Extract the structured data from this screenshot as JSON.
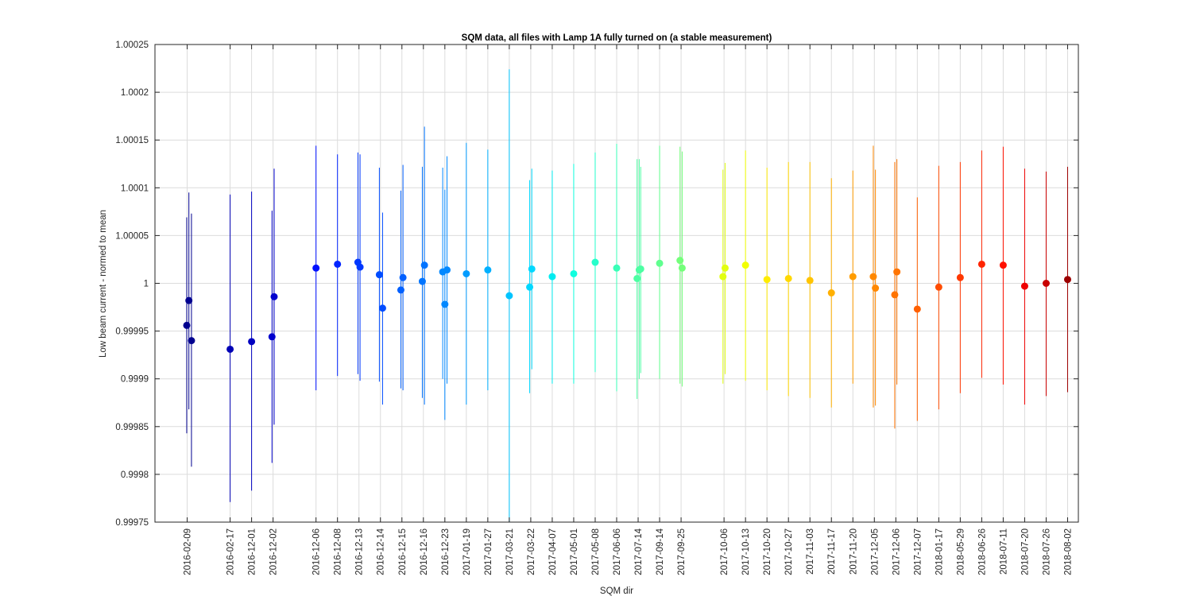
{
  "chart_data": {
    "type": "scatter",
    "title": "SQM data, all files with Lamp 1A fully turned on (a stable measurement)",
    "xlabel": "SQM dir",
    "ylabel": "Low beam current - normed to mean",
    "ylim": [
      0.99975,
      1.00025
    ],
    "yticks": [
      "0.99975",
      "0.9998",
      "0.99985",
      "0.9999",
      "0.99995",
      "1",
      "1.00005",
      "1.0001",
      "1.00015",
      "1.0002",
      "1.00025"
    ],
    "xlim": [
      -0.5,
      42.5
    ],
    "xticks": [
      {
        "x": 1,
        "label": "2016-02-09"
      },
      {
        "x": 3,
        "label": "2016-02-17"
      },
      {
        "x": 4,
        "label": "2016-12-01"
      },
      {
        "x": 5,
        "label": "2016-12-02"
      },
      {
        "x": 7,
        "label": "2016-12-06"
      },
      {
        "x": 8,
        "label": "2016-12-08"
      },
      {
        "x": 9,
        "label": "2016-12-13"
      },
      {
        "x": 10,
        "label": "2016-12-14"
      },
      {
        "x": 11,
        "label": "2016-12-15"
      },
      {
        "x": 12,
        "label": "2016-12-16"
      },
      {
        "x": 13,
        "label": "2016-12-23"
      },
      {
        "x": 14,
        "label": "2017-01-19"
      },
      {
        "x": 15,
        "label": "2017-01-27"
      },
      {
        "x": 16,
        "label": "2017-03-21"
      },
      {
        "x": 17,
        "label": "2017-03-22"
      },
      {
        "x": 18,
        "label": "2017-04-07"
      },
      {
        "x": 19,
        "label": "2017-05-01"
      },
      {
        "x": 20,
        "label": "2017-05-08"
      },
      {
        "x": 21,
        "label": "2017-06-06"
      },
      {
        "x": 22,
        "label": "2017-07-14"
      },
      {
        "x": 23,
        "label": "2017-09-14"
      },
      {
        "x": 24,
        "label": "2017-09-25"
      },
      {
        "x": 26,
        "label": "2017-10-06"
      },
      {
        "x": 27,
        "label": "2017-10-13"
      },
      {
        "x": 28,
        "label": "2017-10-20"
      },
      {
        "x": 29,
        "label": "2017-10-27"
      },
      {
        "x": 30,
        "label": "2017-11-03"
      },
      {
        "x": 31,
        "label": "2017-11-17"
      },
      {
        "x": 32,
        "label": "2017-11-20"
      },
      {
        "x": 33,
        "label": "2017-12-05"
      },
      {
        "x": 34,
        "label": "2017-12-06"
      },
      {
        "x": 35,
        "label": "2017-12-07"
      },
      {
        "x": 36,
        "label": "2018-01-17"
      },
      {
        "x": 37,
        "label": "2018-05-29"
      },
      {
        "x": 38,
        "label": "2018-06-26"
      },
      {
        "x": 39,
        "label": "2018-07-11"
      },
      {
        "x": 40,
        "label": "2018-07-20"
      },
      {
        "x": 41,
        "label": "2018-07-26"
      },
      {
        "x": 42,
        "label": "2018-08-02"
      }
    ],
    "grid": true,
    "colormap": "jet",
    "points": [
      {
        "x": 0.98,
        "y": 0.999956,
        "lo": 0.999843,
        "hi": 1.000069,
        "color": "#00008f"
      },
      {
        "x": 1.08,
        "y": 0.999982,
        "lo": 0.999868,
        "hi": 1.000095,
        "color": "#00008f"
      },
      {
        "x": 1.2,
        "y": 0.99994,
        "lo": 0.999808,
        "hi": 1.000073,
        "color": "#00008f"
      },
      {
        "x": 3,
        "y": 0.999931,
        "lo": 0.999771,
        "hi": 1.000093,
        "color": "#0000b5"
      },
      {
        "x": 4,
        "y": 0.999939,
        "lo": 0.999783,
        "hi": 1.000096,
        "color": "#0000c0"
      },
      {
        "x": 4.95,
        "y": 0.999944,
        "lo": 0.999812,
        "hi": 1.000076,
        "color": "#0000ce"
      },
      {
        "x": 5.05,
        "y": 0.999986,
        "lo": 0.999852,
        "hi": 1.00012,
        "color": "#0000ce"
      },
      {
        "x": 7,
        "y": 1.000016,
        "lo": 0.999888,
        "hi": 1.000144,
        "color": "#0010ff"
      },
      {
        "x": 8,
        "y": 1.00002,
        "lo": 0.999903,
        "hi": 1.000135,
        "color": "#0024ff"
      },
      {
        "x": 8.95,
        "y": 1.000022,
        "lo": 0.999905,
        "hi": 1.000137,
        "color": "#0038ff"
      },
      {
        "x": 9.05,
        "y": 1.000017,
        "lo": 0.999898,
        "hi": 1.000135,
        "color": "#0038ff"
      },
      {
        "x": 9.95,
        "y": 1.000009,
        "lo": 0.999897,
        "hi": 1.000121,
        "color": "#004cff"
      },
      {
        "x": 10.1,
        "y": 0.999974,
        "lo": 0.999873,
        "hi": 1.000074,
        "color": "#004cff"
      },
      {
        "x": 10.95,
        "y": 0.999993,
        "lo": 0.99989,
        "hi": 1.000097,
        "color": "#0060ff"
      },
      {
        "x": 11.05,
        "y": 1.000006,
        "lo": 0.999888,
        "hi": 1.000124,
        "color": "#0060ff"
      },
      {
        "x": 11.95,
        "y": 1.000002,
        "lo": 0.99988,
        "hi": 1.000122,
        "color": "#0074ff"
      },
      {
        "x": 12.05,
        "y": 1.000019,
        "lo": 0.999873,
        "hi": 1.000164,
        "color": "#0074ff"
      },
      {
        "x": 12.9,
        "y": 1.000012,
        "lo": 0.9999,
        "hi": 1.000121,
        "color": "#0088ff"
      },
      {
        "x": 13.0,
        "y": 0.999978,
        "lo": 0.999857,
        "hi": 1.000098,
        "color": "#0088ff"
      },
      {
        "x": 13.1,
        "y": 1.000014,
        "lo": 0.999895,
        "hi": 1.000133,
        "color": "#0088ff"
      },
      {
        "x": 14,
        "y": 1.00001,
        "lo": 0.999873,
        "hi": 1.000147,
        "color": "#009cff"
      },
      {
        "x": 15,
        "y": 1.000014,
        "lo": 0.999888,
        "hi": 1.00014,
        "color": "#00b0ff"
      },
      {
        "x": 16,
        "y": 0.999987,
        "lo": 0.99975,
        "hi": 1.000224,
        "color": "#00c4ff"
      },
      {
        "x": 16.95,
        "y": 0.999996,
        "lo": 0.999885,
        "hi": 1.000108,
        "color": "#00d8ff"
      },
      {
        "x": 17.05,
        "y": 1.000015,
        "lo": 0.99991,
        "hi": 1.00012,
        "color": "#00d8ff"
      },
      {
        "x": 18,
        "y": 1.000007,
        "lo": 0.999895,
        "hi": 1.000118,
        "color": "#00ecf0"
      },
      {
        "x": 19,
        "y": 1.00001,
        "lo": 0.999895,
        "hi": 1.000125,
        "color": "#10ffdf"
      },
      {
        "x": 20,
        "y": 1.000022,
        "lo": 0.999907,
        "hi": 1.000137,
        "color": "#24ffcb"
      },
      {
        "x": 21,
        "y": 1.000016,
        "lo": 0.999887,
        "hi": 1.000146,
        "color": "#38ffb7"
      },
      {
        "x": 21.95,
        "y": 1.000005,
        "lo": 0.999879,
        "hi": 1.00013,
        "color": "#4cffa3"
      },
      {
        "x": 22.05,
        "y": 1.000014,
        "lo": 0.9999,
        "hi": 1.00013,
        "color": "#4cffa3"
      },
      {
        "x": 22.12,
        "y": 1.000015,
        "lo": 0.999906,
        "hi": 1.000122,
        "color": "#4cffa3"
      },
      {
        "x": 23,
        "y": 1.000021,
        "lo": 0.9999,
        "hi": 1.000144,
        "color": "#60ff8f"
      },
      {
        "x": 23.95,
        "y": 1.000024,
        "lo": 0.999895,
        "hi": 1.000143,
        "color": "#74ff7b"
      },
      {
        "x": 24.05,
        "y": 1.000016,
        "lo": 0.999892,
        "hi": 1.000138,
        "color": "#74ff7b"
      },
      {
        "x": 25.95,
        "y": 1.000007,
        "lo": 0.999895,
        "hi": 1.000119,
        "color": "#e2ff10"
      },
      {
        "x": 26.05,
        "y": 1.000016,
        "lo": 0.999905,
        "hi": 1.000126,
        "color": "#e2ff10"
      },
      {
        "x": 27,
        "y": 1.000019,
        "lo": 0.999898,
        "hi": 1.000139,
        "color": "#f2ff00"
      },
      {
        "x": 28,
        "y": 1.000004,
        "lo": 0.999888,
        "hi": 1.000121,
        "color": "#ffec00"
      },
      {
        "x": 29,
        "y": 1.000005,
        "lo": 0.999882,
        "hi": 1.000127,
        "color": "#ffd800"
      },
      {
        "x": 30,
        "y": 1.000003,
        "lo": 0.99988,
        "hi": 1.000127,
        "color": "#ffc400"
      },
      {
        "x": 31,
        "y": 0.99999,
        "lo": 0.99987,
        "hi": 1.00011,
        "color": "#ffb000"
      },
      {
        "x": 32,
        "y": 1.000007,
        "lo": 0.999895,
        "hi": 1.000118,
        "color": "#ff9c00"
      },
      {
        "x": 32.95,
        "y": 1.000007,
        "lo": 0.99987,
        "hi": 1.000144,
        "color": "#ff8800"
      },
      {
        "x": 33.05,
        "y": 0.999995,
        "lo": 0.999872,
        "hi": 1.000119,
        "color": "#ff8800"
      },
      {
        "x": 33.95,
        "y": 0.999988,
        "lo": 0.999848,
        "hi": 1.000127,
        "color": "#ff7400"
      },
      {
        "x": 34.05,
        "y": 1.000012,
        "lo": 0.999894,
        "hi": 1.00013,
        "color": "#ff7400"
      },
      {
        "x": 35,
        "y": 0.999973,
        "lo": 0.999856,
        "hi": 1.00009,
        "color": "#ff6000"
      },
      {
        "x": 36,
        "y": 0.999996,
        "lo": 0.999868,
        "hi": 1.000123,
        "color": "#ff4c00"
      },
      {
        "x": 37,
        "y": 1.000006,
        "lo": 0.999885,
        "hi": 1.000127,
        "color": "#ff3800"
      },
      {
        "x": 38,
        "y": 1.00002,
        "lo": 0.999901,
        "hi": 1.000139,
        "color": "#ff2400"
      },
      {
        "x": 39,
        "y": 1.000019,
        "lo": 0.999894,
        "hi": 1.000143,
        "color": "#ff1000"
      },
      {
        "x": 40,
        "y": 0.999997,
        "lo": 0.999873,
        "hi": 1.00012,
        "color": "#ef0000"
      },
      {
        "x": 41,
        "y": 1.0,
        "lo": 0.999882,
        "hi": 1.000117,
        "color": "#c90000"
      },
      {
        "x": 42,
        "y": 1.000004,
        "lo": 0.999886,
        "hi": 1.000122,
        "color": "#9c0000"
      }
    ]
  }
}
